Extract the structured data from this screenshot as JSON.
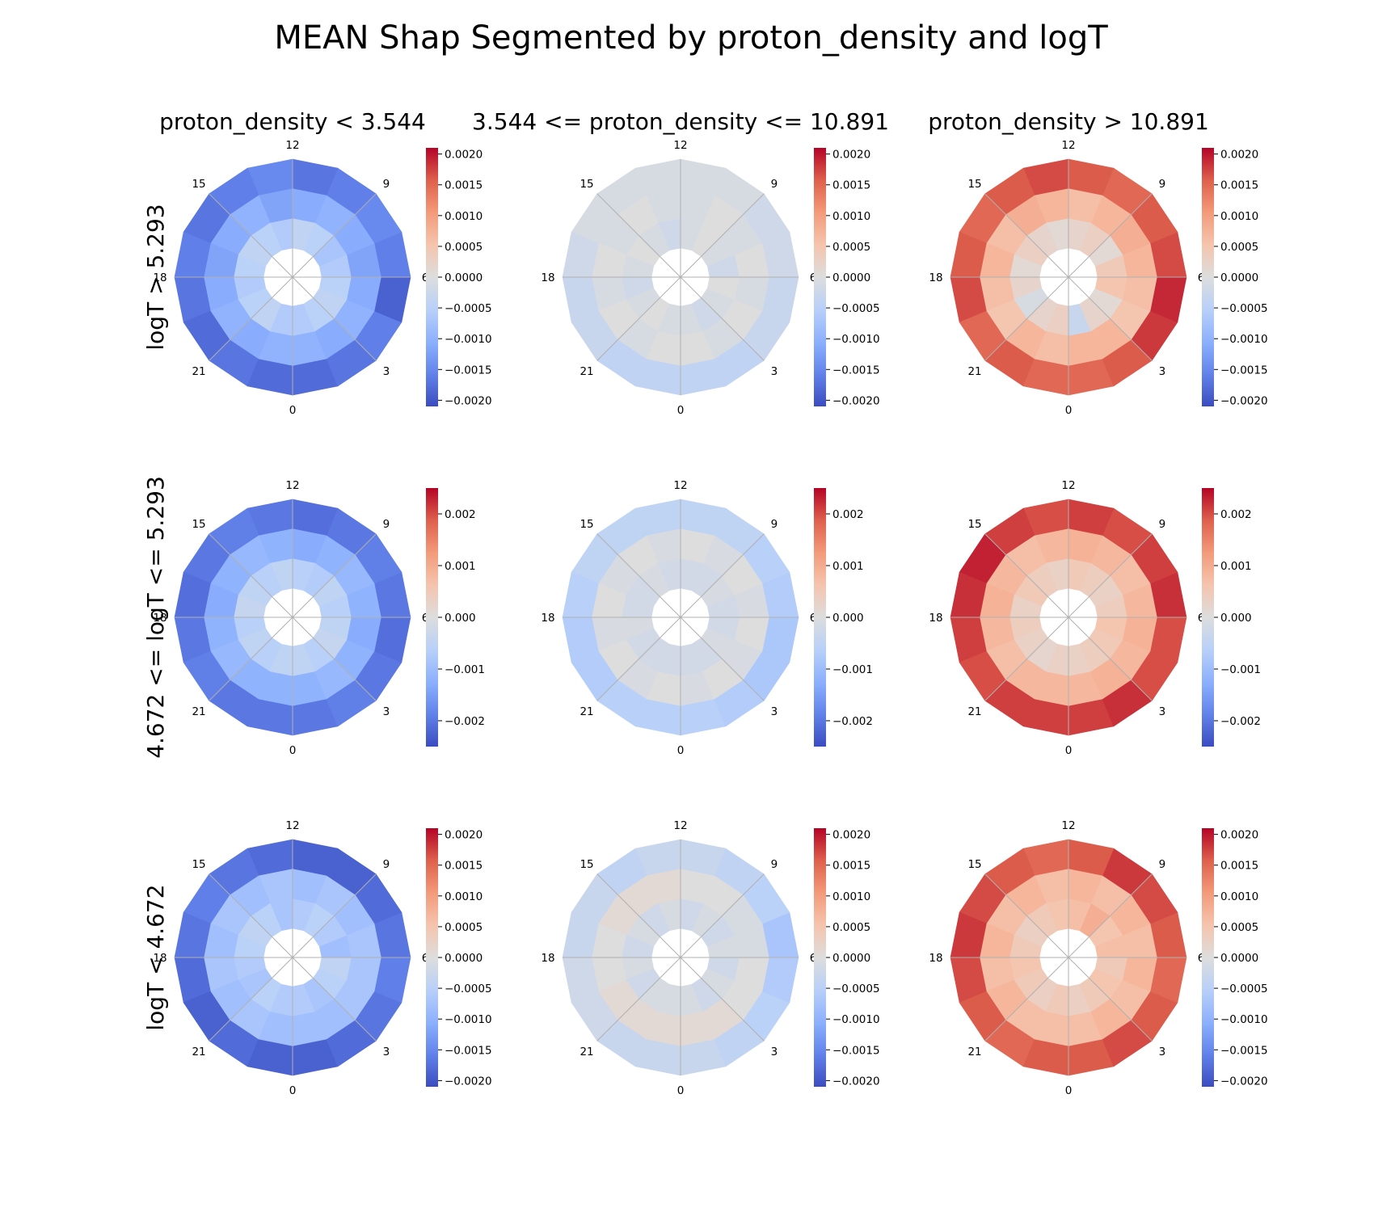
{
  "chart_data": {
    "type": "heatmap",
    "title": "MEAN Shap Segmented by proton_density and logT",
    "col_titles": [
      "proton_density < 3.544",
      "3.544 <= proton_density <= 10.891",
      "proton_density > 10.891"
    ],
    "row_titles": [
      "logT > 5.293",
      "4.672 <= logT <= 5.293",
      "logT < 4.672"
    ],
    "colormap": "coolwarm",
    "hour_labels": [
      "0",
      "3",
      "6",
      "9",
      "12",
      "15",
      "18",
      "21"
    ],
    "grid": true,
    "rows": [
      {
        "clim": [
          -0.0021,
          0.0021
        ],
        "ticks": [
          -0.002,
          -0.0015,
          -0.001,
          -0.0005,
          0,
          0.0005,
          0.001,
          0.0015,
          0.002
        ],
        "tick_labels": [
          "−0.0020",
          "−0.0015",
          "−0.0010",
          "−0.0005",
          "0.0000",
          "0.0005",
          "0.0010",
          "0.0015",
          "0.0020"
        ],
        "panels": [
          {
            "rings": [
              [
                -0.0006,
                -0.0005,
                -0.0004,
                -0.0005,
                -0.0006,
                -0.0007,
                -0.0005,
                -0.0004,
                -0.0006,
                -0.0005,
                -0.0004,
                -0.0005,
                -0.0006,
                -0.0005,
                -0.0004,
                -0.0006
              ],
              [
                -0.001,
                -0.0011,
                -0.001,
                -0.0011,
                -0.0012,
                -0.0011,
                -0.001,
                -0.0011,
                -0.0012,
                -0.001,
                -0.0011,
                -0.0012,
                -0.0011,
                -0.001,
                -0.0011,
                -0.001
              ],
              [
                -0.0018,
                -0.0017,
                -0.0016,
                -0.0019,
                -0.0016,
                -0.0015,
                -0.0016,
                -0.0017,
                -0.0015,
                -0.0016,
                -0.0017,
                -0.0016,
                -0.0017,
                -0.0018,
                -0.0017,
                -0.0018
              ]
            ]
          },
          {
            "rings": [
              [
                -0.0001,
                -0.0002,
                -0.0001,
                0.0,
                -0.0002,
                -0.0001,
                0.0,
                -0.0001,
                -0.0002,
                -0.0001,
                0.0,
                -0.0001,
                -0.0002,
                -0.0001,
                0.0,
                -0.0001
              ],
              [
                0.0,
                -0.0001,
                0.0,
                -0.0001,
                0.0,
                -0.0001,
                0.0,
                -0.0001,
                -0.0001,
                0.0,
                -0.0001,
                0.0,
                -0.0001,
                0.0,
                -0.0001,
                0.0
              ],
              [
                -0.0004,
                -0.0004,
                -0.0003,
                -0.0003,
                -0.0002,
                -0.0002,
                -0.0001,
                -0.0001,
                -0.0001,
                -0.0001,
                -0.0001,
                -0.0002,
                -0.0003,
                -0.0003,
                -0.0004,
                -0.0004
              ]
            ]
          },
          {
            "rings": [
              [
                -0.0003,
                0.0002,
                0.0001,
                0.0005,
                0.0004,
                0.0001,
                0.0003,
                0.0002,
                0.0001,
                0.0002,
                0.0003,
                0.0001,
                0.0002,
                -0.0001,
                0.0002,
                0.0003
              ],
              [
                0.0007,
                0.0007,
                0.0005,
                0.0006,
                0.0007,
                0.0008,
                0.0007,
                0.0006,
                0.0007,
                0.0008,
                0.0006,
                0.0007,
                0.0006,
                0.0005,
                0.0007,
                0.0006
              ],
              [
                0.0015,
                0.0016,
                0.0018,
                0.0019,
                0.0017,
                0.0016,
                0.0015,
                0.0016,
                0.0017,
                0.0016,
                0.0015,
                0.0016,
                0.0017,
                0.0015,
                0.0016,
                0.0015
              ]
            ]
          }
        ]
      },
      {
        "clim": [
          -0.0025,
          0.0025
        ],
        "ticks": [
          -0.002,
          -0.001,
          0,
          0.001,
          0.002
        ],
        "tick_labels": [
          "−0.002",
          "−0.001",
          "0.000",
          "0.001",
          "0.002"
        ],
        "panels": [
          {
            "rings": [
              [
                -0.0005,
                -0.0006,
                -0.0004,
                -0.0005,
                -0.0006,
                -0.0005,
                -0.0007,
                -0.0006,
                -0.0005,
                -0.0006,
                -0.0005,
                -0.0004,
                -0.0006,
                -0.0005,
                -0.0006,
                -0.0005
              ],
              [
                -0.0012,
                -0.0011,
                -0.0012,
                -0.0013,
                -0.0012,
                -0.0011,
                -0.0012,
                -0.0013,
                -0.0012,
                -0.0011,
                -0.0012,
                -0.0013,
                -0.0012,
                -0.0011,
                -0.0012,
                -0.0012
              ],
              [
                -0.002,
                -0.0019,
                -0.002,
                -0.0021,
                -0.002,
                -0.0019,
                -0.002,
                -0.0021,
                -0.002,
                -0.0019,
                -0.002,
                -0.0021,
                -0.002,
                -0.0019,
                -0.002,
                -0.002
              ]
            ]
          },
          {
            "rings": [
              [
                -0.0002,
                -0.0002,
                -0.0001,
                -0.0002,
                -0.0002,
                -0.0001,
                -0.0002,
                -0.0002,
                -0.0002,
                -0.0001,
                -0.0002,
                -0.0002,
                -0.0001,
                -0.0002,
                -0.0002,
                -0.0002
              ],
              [
                -0.0001,
                0.0,
                -0.0001,
                0.0,
                -0.0001,
                0.0,
                -0.0001,
                0.0,
                -0.0001,
                0.0,
                -0.0001,
                0.0,
                -0.0001,
                0.0,
                -0.0001,
                0.0
              ],
              [
                -0.0006,
                -0.0007,
                -0.0008,
                -0.0008,
                -0.0007,
                -0.0006,
                -0.0005,
                -0.0005,
                -0.0005,
                -0.0005,
                -0.0005,
                -0.0006,
                -0.0007,
                -0.0007,
                -0.0006,
                -0.0006
              ]
            ]
          },
          {
            "rings": [
              [
                0.0003,
                0.0004,
                0.0005,
                0.0006,
                0.0004,
                0.0003,
                0.0004,
                0.0005,
                0.0003,
                0.0004,
                0.0005,
                0.0003,
                0.0004,
                0.0003,
                0.0002,
                0.0003
              ],
              [
                0.0008,
                0.0009,
                0.0008,
                0.0009,
                0.0008,
                0.0007,
                0.0008,
                0.0009,
                0.0008,
                0.0007,
                0.0008,
                0.0009,
                0.0008,
                0.0007,
                0.0008,
                0.0008
              ],
              [
                0.0021,
                0.0022,
                0.002,
                0.002,
                0.0022,
                0.0021,
                0.002,
                0.0021,
                0.002,
                0.0021,
                0.0023,
                0.0022,
                0.0021,
                0.002,
                0.0021,
                0.0021
              ]
            ]
          }
        ]
      },
      {
        "clim": [
          -0.0021,
          0.0021
        ],
        "ticks": [
          -0.002,
          -0.0015,
          -0.001,
          -0.0005,
          0,
          0.0005,
          0.001,
          0.0015,
          0.002
        ],
        "tick_labels": [
          "−0.0020",
          "−0.0015",
          "−0.0010",
          "−0.0005",
          "0.0000",
          "0.0005",
          "0.0010",
          "0.0015",
          "0.0020"
        ],
        "panels": [
          {
            "rings": [
              [
                -0.0006,
                -0.0007,
                -0.0005,
                -0.0004,
                -0.0008,
                -0.0006,
                -0.0005,
                -0.0006,
                -0.0007,
                -0.0005,
                -0.0004,
                -0.0005,
                -0.0006,
                -0.0007,
                -0.0005,
                -0.0006
              ],
              [
                -0.0008,
                -0.0008,
                -0.0007,
                -0.0007,
                -0.0007,
                -0.0008,
                -0.0007,
                -0.0008,
                -0.0007,
                -0.0008,
                -0.0007,
                -0.0008,
                -0.0007,
                -0.0008,
                -0.0007,
                -0.0008
              ],
              [
                -0.0019,
                -0.0018,
                -0.0017,
                -0.0016,
                -0.0017,
                -0.0018,
                -0.0019,
                -0.0019,
                -0.0018,
                -0.0017,
                -0.0016,
                -0.0017,
                -0.0018,
                -0.0019,
                -0.0018,
                -0.0019
              ]
            ]
          },
          {
            "rings": [
              [
                -0.0001,
                -0.0002,
                -0.0001,
                -0.0002,
                -0.0001,
                -0.0002,
                -0.0001,
                -0.0002,
                -0.0001,
                -0.0002,
                -0.0001,
                -0.0002,
                -0.0001,
                -0.0002,
                -0.0001,
                -0.0001
              ],
              [
                0.0001,
                0.0001,
                0.0,
                0.0,
                -0.0001,
                -0.0001,
                0.0,
                0.0,
                0.0001,
                0.0001,
                0.0001,
                0.0,
                0.0,
                0.0001,
                0.0001,
                0.0001
              ],
              [
                -0.0003,
                -0.0004,
                -0.0005,
                -0.0006,
                -0.0007,
                -0.0005,
                -0.0004,
                -0.0003,
                -0.0003,
                -0.0004,
                -0.0003,
                -0.0003,
                -0.0002,
                -0.0002,
                -0.0003,
                -0.0003
              ]
            ]
          },
          {
            "rings": [
              [
                0.0003,
                0.0004,
                0.0005,
                0.0004,
                0.0006,
                0.0005,
                0.0008,
                0.0006,
                0.0005,
                0.0004,
                0.0003,
                0.0004,
                0.0005,
                0.0004,
                0.0003,
                0.0004
              ],
              [
                0.0006,
                0.0007,
                0.0006,
                0.0007,
                0.0006,
                0.0007,
                0.0006,
                0.0007,
                0.0006,
                0.0007,
                0.0006,
                0.0007,
                0.0006,
                0.0007,
                0.0006,
                0.0006
              ],
              [
                0.0016,
                0.0017,
                0.0016,
                0.0015,
                0.0016,
                0.0017,
                0.0018,
                0.0016,
                0.0015,
                0.0016,
                0.0017,
                0.0018,
                0.0017,
                0.0016,
                0.0015,
                0.0016
              ]
            ]
          }
        ]
      }
    ]
  }
}
